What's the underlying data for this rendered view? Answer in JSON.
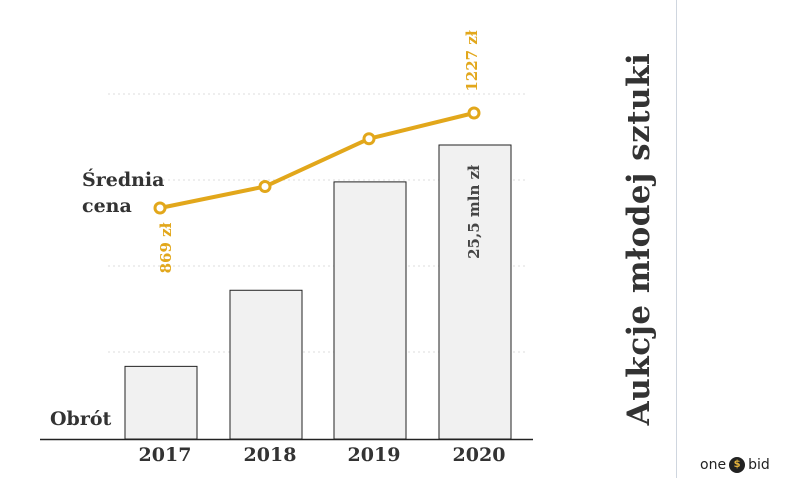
{
  "colors": {
    "accent": "#e2a71b",
    "bar_fill": "#f1f1f1",
    "bar_stroke": "#222222",
    "text": "#333333",
    "grid": "#dddddd"
  },
  "side_title": "Aukcje młodej sztuki",
  "logo": {
    "left": "one",
    "mark": "$",
    "right": "bid"
  },
  "chart_data": {
    "type": "bar",
    "categories": [
      "2017",
      "2018",
      "2019",
      "2020"
    ],
    "series": [
      {
        "name": "Obrót",
        "kind": "bar",
        "values": [
          6.3,
          12.9,
          22.3,
          25.5
        ]
      },
      {
        "name": "Średnia cena",
        "kind": "line",
        "values": [
          869,
          950,
          1130,
          1227
        ]
      }
    ],
    "labels": {
      "bar_series": "Obrót",
      "line_series_line1": "Średnia",
      "line_series_line2": "cena",
      "line_first_value": "869 zł",
      "line_last_value": "1227 zł",
      "bar_last_value": "25,5 mln zł"
    },
    "bar_axis": {
      "min": 0,
      "max": 30
    },
    "line_axis": {
      "min": 500,
      "max": 1400
    },
    "grid": true
  }
}
